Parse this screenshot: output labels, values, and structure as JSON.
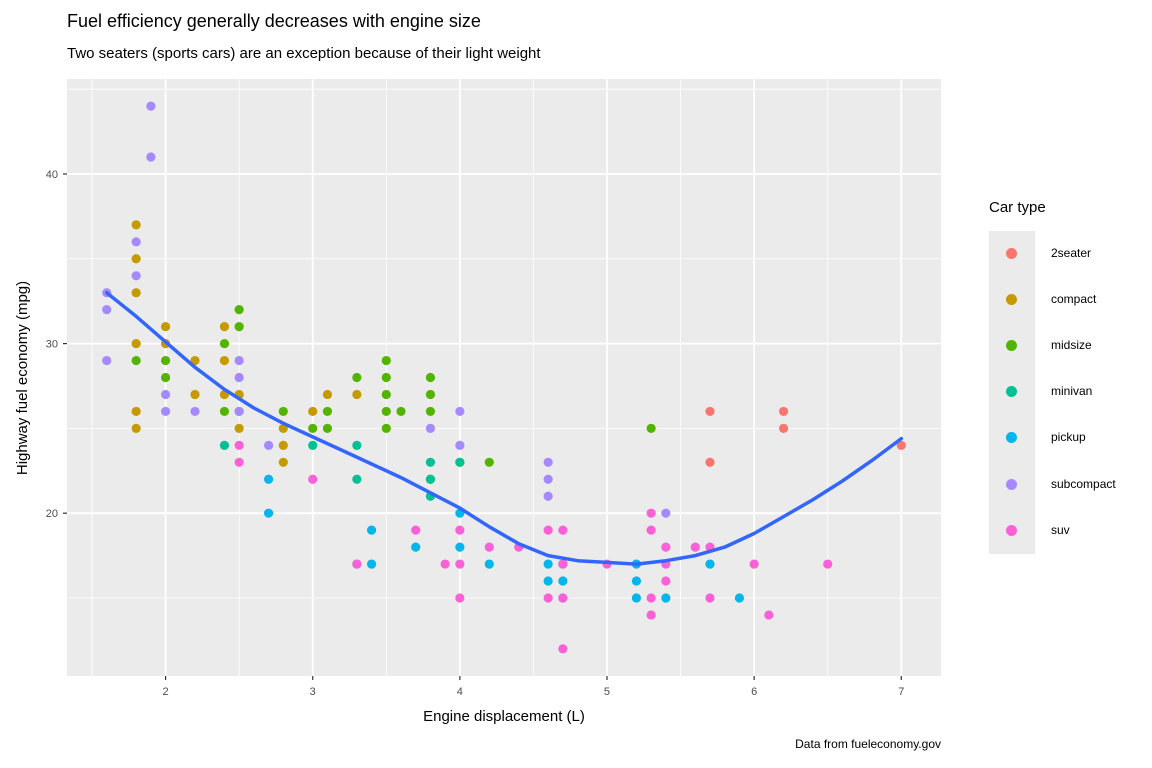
{
  "chart_data": {
    "type": "scatter",
    "title": "Fuel efficiency generally decreases with engine size",
    "subtitle": "Two seaters (sports cars) are an exception because of their light weight",
    "caption": "Data from fueleconomy.gov",
    "xlabel": "Engine displacement (L)",
    "ylabel": "Highway fuel economy (mpg)",
    "xlim": [
      1.33,
      7.27
    ],
    "ylim": [
      10.4,
      45.6
    ],
    "x_ticks": [
      2,
      3,
      4,
      5,
      6,
      7
    ],
    "y_ticks": [
      20,
      30,
      40
    ],
    "grid": true,
    "legend": {
      "title": "Car type",
      "position": "right",
      "entries": [
        "2seater",
        "compact",
        "midsize",
        "minivan",
        "pickup",
        "subcompact",
        "suv"
      ]
    },
    "colors": {
      "2seater": "#F8766D",
      "compact": "#C49A00",
      "midsize": "#53B400",
      "minivan": "#00C094",
      "pickup": "#00B6EB",
      "subcompact": "#A58AFF",
      "suv": "#FB61D7"
    },
    "series": [
      {
        "name": "2seater",
        "points": [
          [
            5.7,
            26
          ],
          [
            5.7,
            23
          ],
          [
            6.2,
            26
          ],
          [
            6.2,
            25
          ],
          [
            7.0,
            24
          ]
        ]
      },
      {
        "name": "compact",
        "points": [
          [
            1.8,
            37
          ],
          [
            1.8,
            35
          ],
          [
            1.8,
            33
          ],
          [
            1.8,
            30
          ],
          [
            1.8,
            26
          ],
          [
            1.8,
            25
          ],
          [
            2.0,
            31
          ],
          [
            2.0,
            30
          ],
          [
            2.2,
            29
          ],
          [
            2.2,
            27
          ],
          [
            2.4,
            31
          ],
          [
            2.4,
            29
          ],
          [
            2.4,
            27
          ],
          [
            2.5,
            27
          ],
          [
            2.5,
            25
          ],
          [
            2.8,
            25
          ],
          [
            2.8,
            24
          ],
          [
            2.8,
            23
          ],
          [
            3.0,
            26
          ],
          [
            3.1,
            27
          ],
          [
            3.3,
            27
          ]
        ]
      },
      {
        "name": "midsize",
        "points": [
          [
            1.8,
            29
          ],
          [
            2.0,
            29
          ],
          [
            2.0,
            28
          ],
          [
            2.4,
            30
          ],
          [
            2.4,
            26
          ],
          [
            2.5,
            32
          ],
          [
            2.5,
            31
          ],
          [
            2.5,
            26
          ],
          [
            2.8,
            26
          ],
          [
            3.0,
            25
          ],
          [
            3.1,
            26
          ],
          [
            3.1,
            25
          ],
          [
            3.3,
            28
          ],
          [
            3.5,
            29
          ],
          [
            3.5,
            28
          ],
          [
            3.5,
            27
          ],
          [
            3.5,
            26
          ],
          [
            3.5,
            25
          ],
          [
            3.6,
            26
          ],
          [
            3.8,
            28
          ],
          [
            3.8,
            27
          ],
          [
            3.8,
            26
          ],
          [
            3.8,
            22
          ],
          [
            4.0,
            23
          ],
          [
            4.2,
            23
          ],
          [
            5.3,
            25
          ]
        ]
      },
      {
        "name": "minivan",
        "points": [
          [
            2.4,
            24
          ],
          [
            3.0,
            24
          ],
          [
            3.3,
            24
          ],
          [
            3.3,
            22
          ],
          [
            3.3,
            17
          ],
          [
            3.8,
            23
          ],
          [
            3.8,
            22
          ],
          [
            3.8,
            21
          ],
          [
            4.0,
            23
          ]
        ]
      },
      {
        "name": "pickup",
        "points": [
          [
            2.7,
            22
          ],
          [
            2.7,
            20
          ],
          [
            3.4,
            19
          ],
          [
            3.4,
            17
          ],
          [
            3.7,
            18
          ],
          [
            4.0,
            20
          ],
          [
            4.0,
            18
          ],
          [
            4.2,
            17
          ],
          [
            4.6,
            17
          ],
          [
            4.6,
            16
          ],
          [
            4.7,
            17
          ],
          [
            4.7,
            16
          ],
          [
            4.7,
            15
          ],
          [
            5.2,
            17
          ],
          [
            5.2,
            16
          ],
          [
            5.2,
            15
          ],
          [
            5.4,
            15
          ],
          [
            5.7,
            17
          ],
          [
            5.9,
            15
          ]
        ]
      },
      {
        "name": "subcompact",
        "points": [
          [
            1.6,
            33
          ],
          [
            1.6,
            32
          ],
          [
            1.6,
            29
          ],
          [
            1.8,
            36
          ],
          [
            1.8,
            34
          ],
          [
            1.9,
            44
          ],
          [
            1.9,
            41
          ],
          [
            2.0,
            27
          ],
          [
            2.0,
            26
          ],
          [
            2.2,
            26
          ],
          [
            2.5,
            29
          ],
          [
            2.5,
            28
          ],
          [
            2.5,
            26
          ],
          [
            2.7,
            24
          ],
          [
            3.8,
            25
          ],
          [
            4.0,
            26
          ],
          [
            4.0,
            24
          ],
          [
            4.6,
            23
          ],
          [
            4.6,
            22
          ],
          [
            4.6,
            21
          ],
          [
            5.4,
            20
          ]
        ]
      },
      {
        "name": "suv",
        "points": [
          [
            2.5,
            24
          ],
          [
            2.5,
            23
          ],
          [
            3.0,
            22
          ],
          [
            3.3,
            17
          ],
          [
            3.7,
            19
          ],
          [
            3.9,
            17
          ],
          [
            4.0,
            19
          ],
          [
            4.0,
            17
          ],
          [
            4.0,
            15
          ],
          [
            4.2,
            18
          ],
          [
            4.4,
            18
          ],
          [
            4.6,
            19
          ],
          [
            4.6,
            15
          ],
          [
            4.7,
            19
          ],
          [
            4.7,
            17
          ],
          [
            4.7,
            15
          ],
          [
            4.7,
            12
          ],
          [
            5.0,
            17
          ],
          [
            5.3,
            20
          ],
          [
            5.3,
            19
          ],
          [
            5.3,
            15
          ],
          [
            5.3,
            14
          ],
          [
            5.4,
            18
          ],
          [
            5.4,
            17
          ],
          [
            5.4,
            16
          ],
          [
            5.6,
            18
          ],
          [
            5.7,
            18
          ],
          [
            5.7,
            15
          ],
          [
            6.0,
            17
          ],
          [
            6.1,
            14
          ],
          [
            6.5,
            17
          ]
        ]
      }
    ],
    "smooth_line": {
      "color": "#3366FF",
      "points": [
        [
          1.6,
          33
        ],
        [
          1.8,
          31.6
        ],
        [
          2.0,
          30.1
        ],
        [
          2.2,
          28.6
        ],
        [
          2.4,
          27.3
        ],
        [
          2.6,
          26.2
        ],
        [
          2.8,
          25.3
        ],
        [
          3.0,
          24.5
        ],
        [
          3.2,
          23.7
        ],
        [
          3.4,
          22.9
        ],
        [
          3.6,
          22.1
        ],
        [
          3.8,
          21.2
        ],
        [
          4.0,
          20.3
        ],
        [
          4.2,
          19.2
        ],
        [
          4.4,
          18.2
        ],
        [
          4.6,
          17.5
        ],
        [
          4.8,
          17.2
        ],
        [
          5.0,
          17.1
        ],
        [
          5.2,
          17.0
        ],
        [
          5.4,
          17.2
        ],
        [
          5.6,
          17.5
        ],
        [
          5.8,
          18.0
        ],
        [
          6.0,
          18.8
        ],
        [
          6.2,
          19.8
        ],
        [
          6.4,
          20.8
        ],
        [
          6.6,
          21.9
        ],
        [
          6.8,
          23.1
        ],
        [
          7.0,
          24.4
        ]
      ]
    }
  }
}
